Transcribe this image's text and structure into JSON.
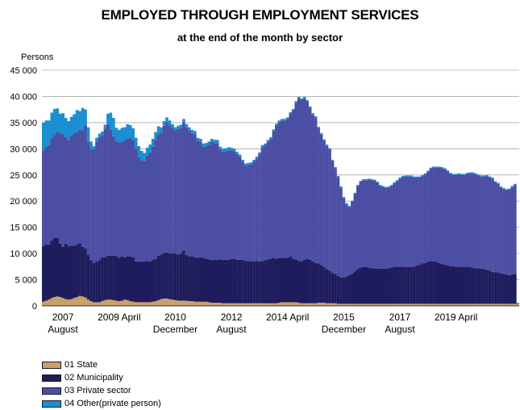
{
  "chart_data": {
    "type": "bar",
    "stacked": true,
    "title": "EMPLOYED THROUGH EMPLOYMENT SERVICES",
    "subtitle": "at the end of the month by sector",
    "ylabel": "Persons",
    "ylim": [
      0,
      45000
    ],
    "yticks": [
      0,
      5000,
      10000,
      15000,
      20000,
      25000,
      30000,
      35000,
      40000,
      45000
    ],
    "ytick_labels": [
      "0",
      "5 000",
      "10 000",
      "15 000",
      "20 000",
      "25 000",
      "30 000",
      "35 000",
      "40 000",
      "45 000"
    ],
    "grid": true,
    "legend_position": "bottom-left",
    "xtick_labels": [
      {
        "line1": "2007",
        "line2": "August",
        "month_index": 7
      },
      {
        "line1": "2009 April",
        "line2": "",
        "month_index": 27
      },
      {
        "line1": "2010",
        "line2": "December",
        "month_index": 47
      },
      {
        "line1": "2012",
        "line2": "August",
        "month_index": 67
      },
      {
        "line1": "2014 April",
        "line2": "",
        "month_index": 87
      },
      {
        "line1": "2015",
        "line2": "December",
        "month_index": 107
      },
      {
        "line1": "2017",
        "line2": "August",
        "month_index": 127
      },
      {
        "line1": "2019 April",
        "line2": "",
        "month_index": 147
      }
    ],
    "series": [
      {
        "name": "01 State",
        "color": "#c8a06a",
        "values": [
          800,
          1000,
          1200,
          1500,
          1700,
          1800,
          1700,
          1500,
          1300,
          1200,
          1300,
          1500,
          1700,
          1900,
          1800,
          1600,
          1200,
          900,
          700,
          700,
          700,
          900,
          1100,
          1200,
          1200,
          1100,
          1000,
          900,
          1000,
          1200,
          1100,
          900,
          800,
          700,
          700,
          700,
          700,
          700,
          700,
          800,
          900,
          1100,
          1300,
          1400,
          1400,
          1300,
          1200,
          1100,
          1000,
          1000,
          1000,
          1000,
          900,
          900,
          800,
          800,
          800,
          800,
          800,
          700,
          600,
          600,
          600,
          600,
          500,
          500,
          500,
          500,
          500,
          500,
          500,
          500,
          500,
          500,
          500,
          500,
          500,
          500,
          500,
          500,
          500,
          500,
          500,
          500,
          600,
          700,
          700,
          700,
          700,
          700,
          700,
          600,
          500,
          500,
          500,
          500,
          500,
          500,
          600,
          600,
          600,
          500,
          500,
          500,
          500,
          400,
          400,
          400,
          400,
          400,
          400,
          400,
          400,
          400,
          400,
          400,
          400,
          400,
          400,
          400,
          400,
          400,
          400,
          400,
          400,
          400,
          400,
          400,
          400,
          400,
          400,
          400,
          400,
          400,
          400,
          400,
          400,
          400,
          400,
          400,
          400,
          400,
          400,
          400,
          400,
          400,
          400,
          400,
          400,
          400,
          400,
          400,
          400,
          400,
          400,
          400,
          400,
          400,
          400,
          400,
          400,
          400,
          400,
          400,
          400,
          400,
          400,
          400,
          400,
          400
        ]
      },
      {
        "name": "02 Municipality",
        "color": "#1e1c5c",
        "values": [
          10600,
          10700,
          10500,
          11000,
          11300,
          11200,
          10200,
          9800,
          10600,
          10200,
          10200,
          10000,
          10000,
          10100,
          9500,
          9400,
          8500,
          7800,
          7500,
          7700,
          8000,
          8400,
          8200,
          8400,
          8400,
          8500,
          8500,
          8300,
          8500,
          8100,
          8300,
          8500,
          8500,
          7800,
          7800,
          7700,
          7700,
          7900,
          7800,
          8000,
          8100,
          8500,
          8500,
          8700,
          8800,
          8700,
          8800,
          8900,
          8800,
          9000,
          9600,
          8700,
          8600,
          8600,
          8500,
          8400,
          8500,
          8400,
          8200,
          8200,
          8100,
          8200,
          8200,
          8300,
          8300,
          8300,
          8300,
          8500,
          8500,
          8300,
          8300,
          8300,
          8100,
          8100,
          8000,
          8000,
          8100,
          8000,
          8100,
          8200,
          8400,
          8500,
          8700,
          8500,
          8500,
          8500,
          8500,
          8500,
          8700,
          8300,
          8200,
          8000,
          8000,
          8300,
          8500,
          8300,
          8000,
          7700,
          7500,
          7200,
          6800,
          6500,
          6200,
          5800,
          5600,
          5300,
          5000,
          5000,
          5200,
          5500,
          5800,
          6200,
          6600,
          6900,
          7000,
          7000,
          6900,
          6800,
          6800,
          6700,
          6700,
          6700,
          6700,
          6800,
          6900,
          7100,
          7100,
          7100,
          7100,
          7000,
          7000,
          7000,
          7100,
          7300,
          7500,
          7700,
          7800,
          8000,
          8200,
          8100,
          8000,
          7800,
          7600,
          7500,
          7300,
          7200,
          7200,
          7100,
          7000,
          7000,
          7000,
          7000,
          7000,
          6900,
          6800,
          6800,
          6700,
          6600,
          6500,
          6300,
          6100,
          6000,
          6000,
          5800,
          5700,
          5600,
          5500,
          5600,
          5700
        ]
      },
      {
        "name": "03 Private sector",
        "color": "#4b4ea2",
        "values": [
          18300,
          18700,
          19000,
          19500,
          19600,
          20200,
          21000,
          21500,
          20300,
          20300,
          21000,
          21400,
          21500,
          21700,
          22200,
          23500,
          21700,
          21200,
          21700,
          23000,
          23500,
          23200,
          24500,
          25100,
          24000,
          22800,
          22000,
          22000,
          21900,
          22300,
          22500,
          22600,
          22400,
          21500,
          19900,
          19400,
          19300,
          20100,
          20800,
          21600,
          22700,
          23200,
          23300,
          24300,
          24900,
          24500,
          24000,
          23500,
          24000,
          24000,
          24500,
          24400,
          24000,
          23500,
          23500,
          22300,
          22000,
          21200,
          21500,
          21900,
          22600,
          22300,
          22300,
          20900,
          20600,
          20700,
          20900,
          20700,
          20500,
          20200,
          19700,
          18700,
          18200,
          18300,
          18500,
          19000,
          19500,
          20400,
          21700,
          21900,
          22400,
          22800,
          24200,
          25500,
          26000,
          26200,
          26200,
          26500,
          27300,
          28300,
          29900,
          31000,
          30800,
          30800,
          30000,
          29000,
          28000,
          27700,
          25800,
          24900,
          24100,
          23500,
          23200,
          21400,
          20200,
          18900,
          17200,
          15200,
          13800,
          13000,
          13700,
          14800,
          15900,
          16400,
          16600,
          16600,
          16800,
          16800,
          16700,
          16400,
          15800,
          15600,
          15400,
          15400,
          15600,
          15900,
          16300,
          16800,
          17100,
          17300,
          17300,
          17300,
          17000,
          16800,
          16600,
          16700,
          16900,
          17200,
          17600,
          17900,
          18000,
          18200,
          18300,
          18200,
          18000,
          17600,
          17400,
          17500,
          17700,
          17600,
          17600,
          17800,
          17900,
          18000,
          17900,
          17700,
          17600,
          17700,
          17900,
          17800,
          17800,
          17200,
          16900,
          16400,
          16200,
          16100,
          16300,
          16700,
          17000
        ]
      },
      {
        "name": "04 Other(private person)",
        "color": "#1b8fd2",
        "values": [
          5300,
          5000,
          4700,
          4900,
          5000,
          4500,
          3800,
          4000,
          3700,
          3600,
          3600,
          3700,
          4200,
          3500,
          4300,
          3000,
          2700,
          1500,
          600,
          700,
          700,
          800,
          800,
          2000,
          3300,
          3500,
          2500,
          2400,
          2600,
          2500,
          2800,
          2500,
          2200,
          2100,
          2100,
          1800,
          1500,
          1500,
          1500,
          1500,
          1500,
          1500,
          1000,
          900,
          900,
          900,
          700,
          600,
          600,
          600,
          600,
          600,
          600,
          600,
          600,
          600,
          600,
          600,
          600,
          600,
          600,
          600,
          600,
          600,
          600,
          600,
          600,
          500,
          500,
          400,
          400,
          400,
          400,
          400,
          400,
          400,
          400,
          400,
          400,
          400,
          400,
          400,
          300,
          300,
          300,
          300,
          300,
          300,
          300,
          300,
          300,
          300,
          300,
          300,
          300,
          300,
          300,
          300,
          300,
          300,
          300,
          300,
          200,
          200,
          200,
          200,
          200,
          200,
          200,
          200,
          200,
          200,
          200,
          200,
          200,
          200,
          200,
          200,
          200,
          200,
          200,
          200,
          200,
          200,
          200,
          200,
          200,
          200,
          200,
          200,
          200,
          200,
          200,
          200,
          200,
          200,
          200,
          200,
          200,
          200,
          200,
          200,
          200,
          200,
          200,
          200,
          200,
          200,
          200,
          200,
          200,
          200,
          200,
          200,
          200,
          200,
          200,
          200,
          200,
          200,
          200,
          200,
          200,
          200,
          200,
          200,
          200,
          200,
          200,
          200,
          200
        ]
      }
    ]
  }
}
